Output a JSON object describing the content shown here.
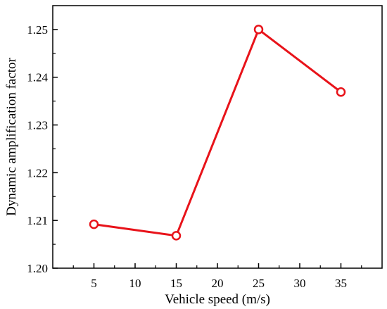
{
  "chart_data": {
    "type": "line",
    "xlabel": "Vehicle speed (m/s)",
    "ylabel": "Dynamic amplification factor",
    "xlim": [
      0,
      40
    ],
    "ylim": [
      1.2,
      1.255
    ],
    "x_ticks": [
      5,
      10,
      15,
      20,
      25,
      30,
      35
    ],
    "x_tick_labels": [
      "5",
      "10",
      "15",
      "20",
      "25",
      "30",
      "35"
    ],
    "y_ticks": [
      1.2,
      1.21,
      1.22,
      1.23,
      1.24,
      1.25
    ],
    "y_tick_labels": [
      "1.20",
      "1.21",
      "1.22",
      "1.23",
      "1.24",
      "1.25"
    ],
    "grid": false,
    "legend": "none",
    "series": [
      {
        "color": "#e8131a",
        "marker": "open-circle",
        "x": [
          5,
          15,
          25,
          35
        ],
        "y": [
          1.2092,
          1.2068,
          1.25,
          1.2369
        ]
      }
    ]
  }
}
